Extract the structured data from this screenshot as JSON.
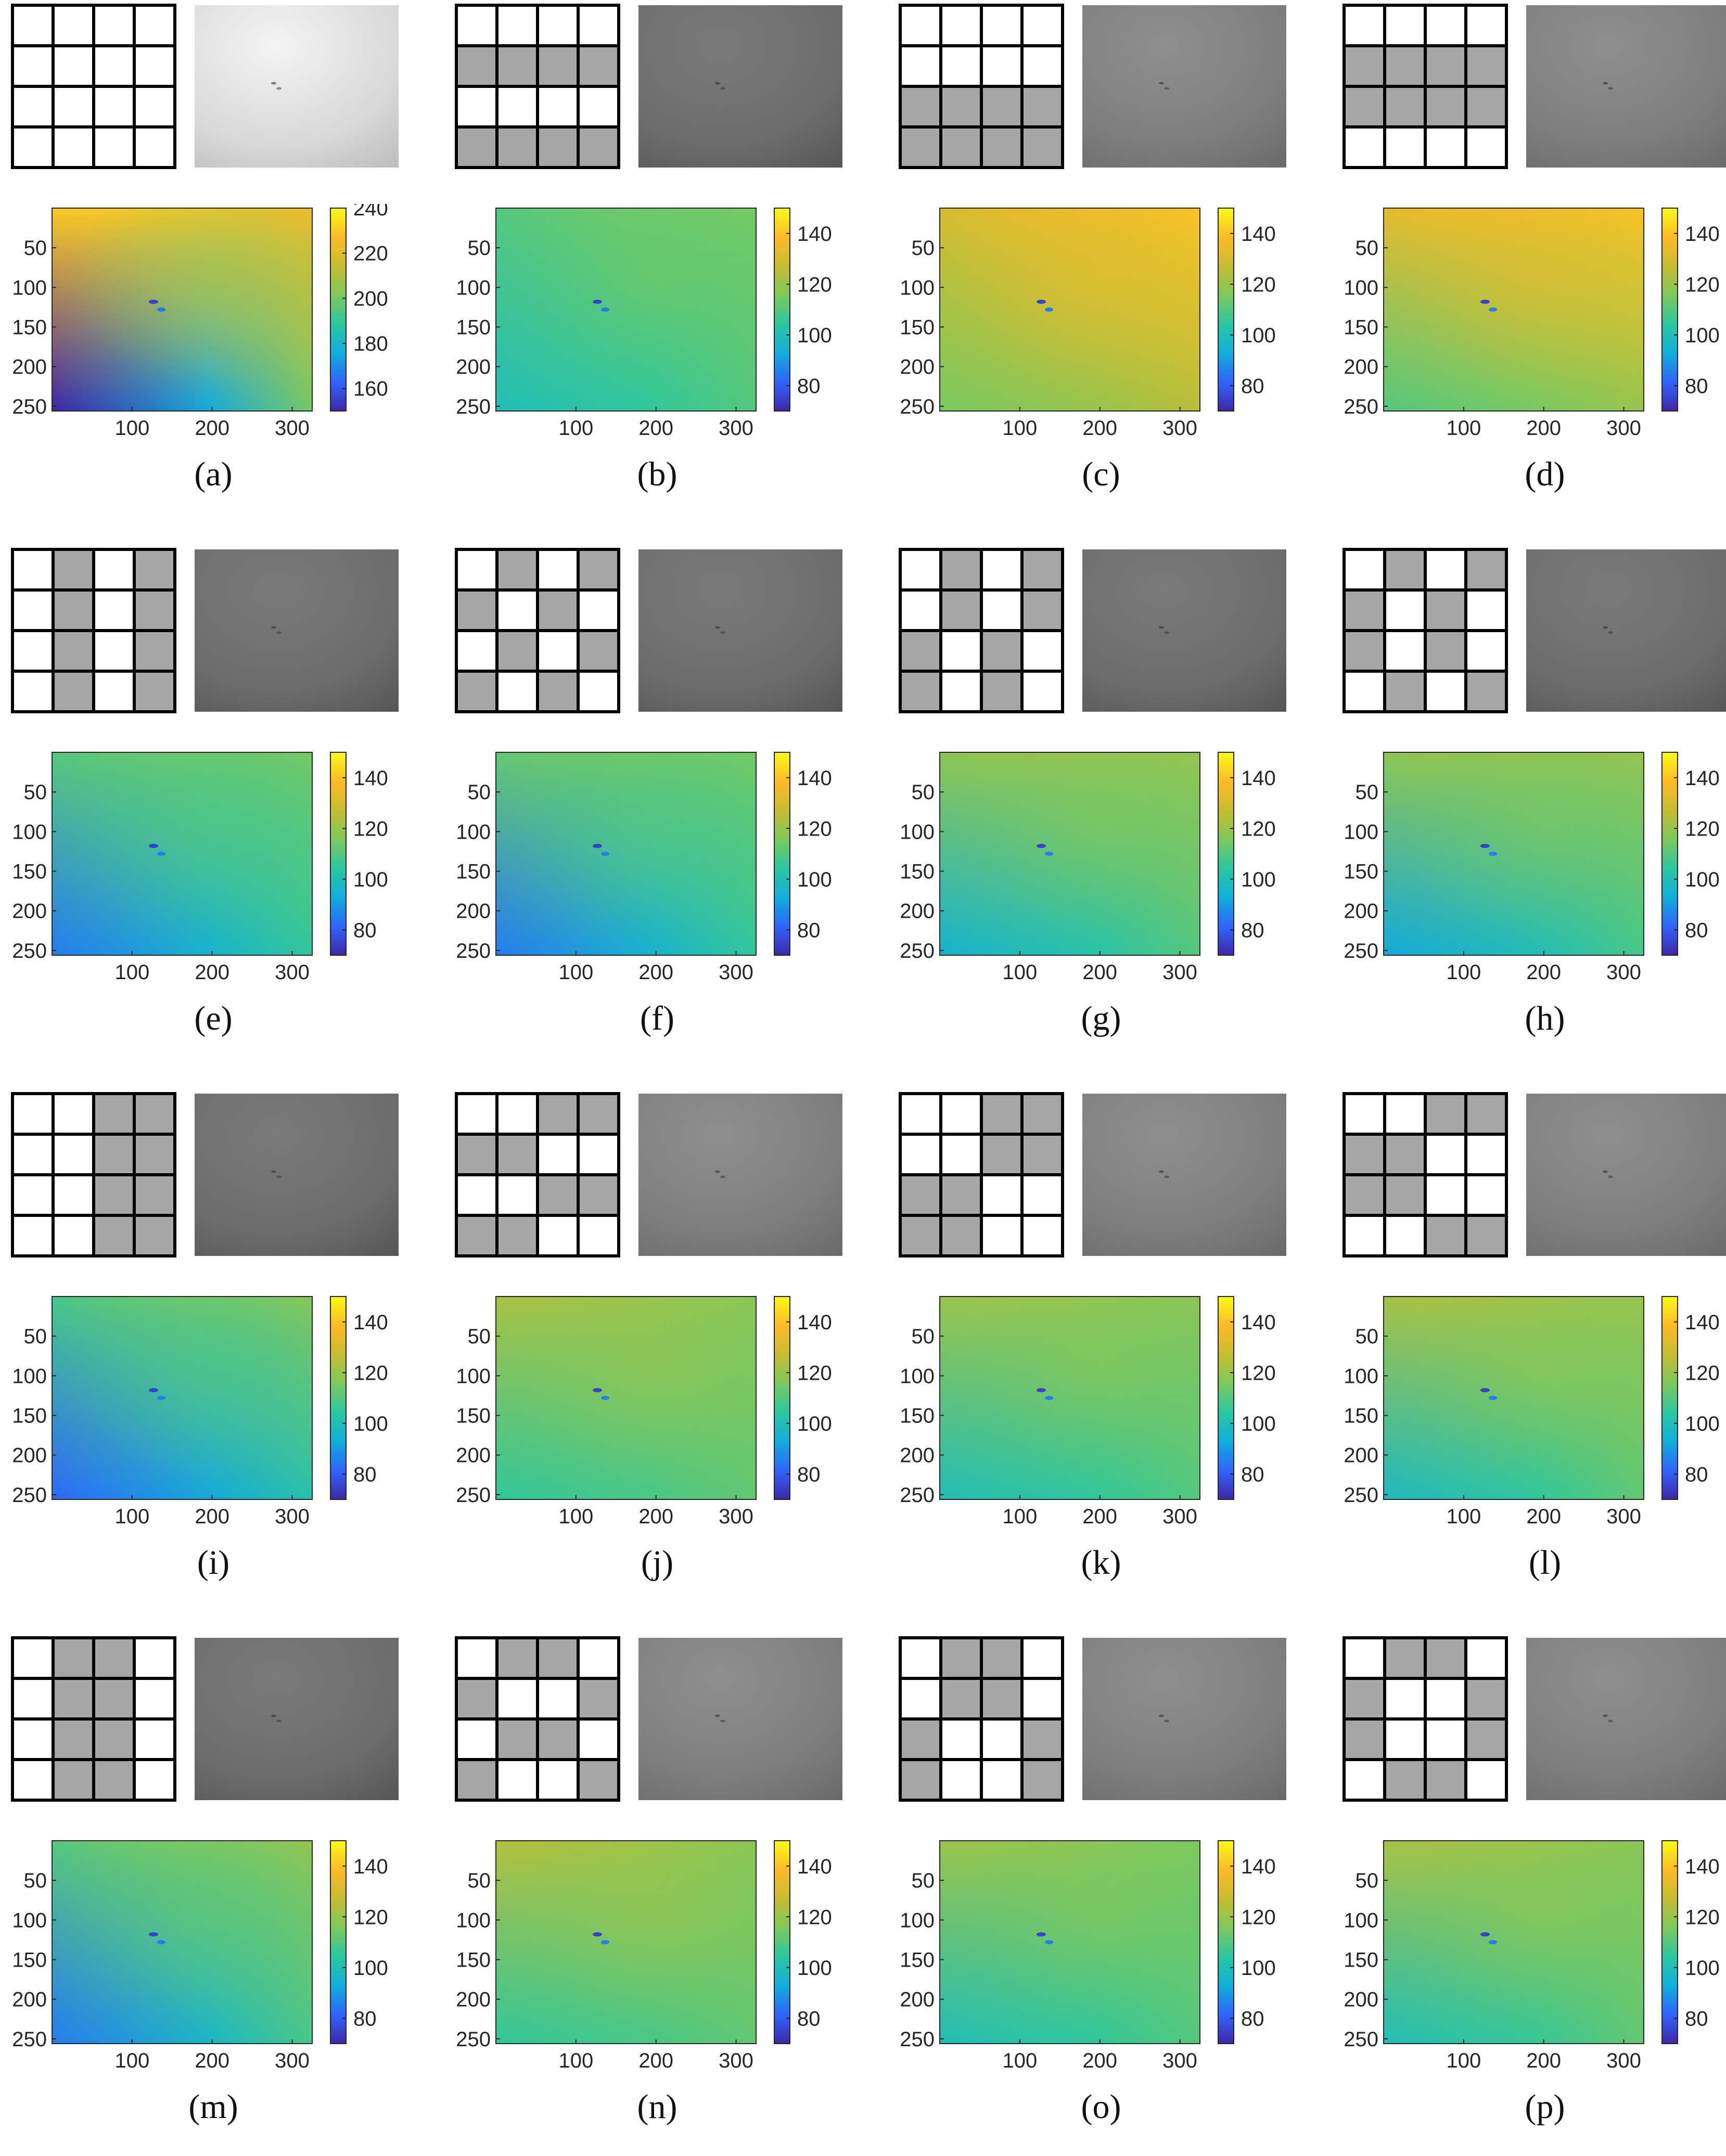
{
  "figure": {
    "mask_gray_color": "#a6a6a6",
    "mask_white_color": "#ffffff",
    "colorbar_stops": [
      "#3e26a8",
      "#2f65fa",
      "#12aeda",
      "#2cc7a0",
      "#7dc95c",
      "#c7bc32",
      "#fdbb27",
      "#f9fb15"
    ],
    "x_ticks": [
      "100",
      "200",
      "300"
    ],
    "y_ticks": [
      "50",
      "100",
      "150",
      "200",
      "250"
    ],
    "panels": [
      {
        "label": "(a)",
        "mask": [
          [
            0,
            0,
            0,
            0
          ],
          [
            0,
            0,
            0,
            0
          ],
          [
            0,
            0,
            0,
            0
          ],
          [
            0,
            0,
            0,
            0
          ]
        ],
        "thumb_tone": "bright",
        "colorbar_ticks": [
          "240",
          "220",
          "200",
          "180",
          "160"
        ],
        "color_range": [
          150,
          240
        ],
        "map": {
          "top_left": 230,
          "top_right": 225,
          "bottom_left": 150,
          "bottom_right": 200
        }
      },
      {
        "label": "(b)",
        "mask": [
          [
            0,
            0,
            0,
            0
          ],
          [
            1,
            1,
            1,
            1
          ],
          [
            0,
            0,
            0,
            0
          ],
          [
            1,
            1,
            1,
            1
          ]
        ],
        "thumb_tone": "dark",
        "colorbar_ticks": [
          "140",
          "120",
          "100",
          "80"
        ],
        "color_range": [
          70,
          150
        ],
        "map": {
          "top_left": 110,
          "top_right": 115,
          "bottom_left": 100,
          "bottom_right": 110
        }
      },
      {
        "label": "(c)",
        "mask": [
          [
            0,
            0,
            0,
            0
          ],
          [
            0,
            0,
            0,
            0
          ],
          [
            1,
            1,
            1,
            1
          ],
          [
            1,
            1,
            1,
            1
          ]
        ],
        "thumb_tone": "mid",
        "colorbar_ticks": [
          "140",
          "120",
          "100",
          "80"
        ],
        "color_range": [
          70,
          150
        ],
        "map": {
          "top_left": 130,
          "top_right": 140,
          "bottom_left": 115,
          "bottom_right": 125
        }
      },
      {
        "label": "(d)",
        "mask": [
          [
            0,
            0,
            0,
            0
          ],
          [
            1,
            1,
            1,
            1
          ],
          [
            1,
            1,
            1,
            1
          ],
          [
            0,
            0,
            0,
            0
          ]
        ],
        "thumb_tone": "mid",
        "colorbar_ticks": [
          "140",
          "120",
          "100",
          "80"
        ],
        "color_range": [
          70,
          150
        ],
        "map": {
          "top_left": 133,
          "top_right": 140,
          "bottom_left": 110,
          "bottom_right": 120
        }
      },
      {
        "label": "(e)",
        "mask": [
          [
            0,
            1,
            0,
            1
          ],
          [
            0,
            1,
            0,
            1
          ],
          [
            0,
            1,
            0,
            1
          ],
          [
            0,
            1,
            0,
            1
          ]
        ],
        "thumb_tone": "dark",
        "colorbar_ticks": [
          "140",
          "120",
          "100",
          "80"
        ],
        "color_range": [
          70,
          150
        ],
        "map": {
          "top_left": 110,
          "top_right": 115,
          "bottom_left": 85,
          "bottom_right": 105
        }
      },
      {
        "label": "(f)",
        "mask": [
          [
            0,
            1,
            0,
            1
          ],
          [
            1,
            0,
            1,
            0
          ],
          [
            0,
            1,
            0,
            1
          ],
          [
            1,
            0,
            1,
            0
          ]
        ],
        "thumb_tone": "dark",
        "colorbar_ticks": [
          "140",
          "120",
          "100",
          "80"
        ],
        "color_range": [
          70,
          150
        ],
        "map": {
          "top_left": 112,
          "top_right": 115,
          "bottom_left": 85,
          "bottom_right": 105
        }
      },
      {
        "label": "(g)",
        "mask": [
          [
            0,
            1,
            0,
            1
          ],
          [
            0,
            1,
            0,
            1
          ],
          [
            1,
            0,
            1,
            0
          ],
          [
            1,
            0,
            1,
            0
          ]
        ],
        "thumb_tone": "dark",
        "colorbar_ticks": [
          "140",
          "120",
          "100",
          "80"
        ],
        "color_range": [
          70,
          150
        ],
        "map": {
          "top_left": 118,
          "top_right": 120,
          "bottom_left": 95,
          "bottom_right": 110
        }
      },
      {
        "label": "(h)",
        "mask": [
          [
            0,
            1,
            0,
            1
          ],
          [
            1,
            0,
            1,
            0
          ],
          [
            1,
            0,
            1,
            0
          ],
          [
            0,
            1,
            0,
            1
          ]
        ],
        "thumb_tone": "dark",
        "colorbar_ticks": [
          "140",
          "120",
          "100",
          "80"
        ],
        "color_range": [
          70,
          150
        ],
        "map": {
          "top_left": 118,
          "top_right": 120,
          "bottom_left": 92,
          "bottom_right": 108
        }
      },
      {
        "label": "(i)",
        "mask": [
          [
            0,
            0,
            1,
            1
          ],
          [
            0,
            0,
            1,
            1
          ],
          [
            0,
            0,
            1,
            1
          ],
          [
            0,
            0,
            1,
            1
          ]
        ],
        "thumb_tone": "dark",
        "colorbar_ticks": [
          "140",
          "120",
          "100",
          "80"
        ],
        "color_range": [
          70,
          150
        ],
        "map": {
          "top_left": 108,
          "top_right": 118,
          "bottom_left": 82,
          "bottom_right": 102
        }
      },
      {
        "label": "(j)",
        "mask": [
          [
            0,
            0,
            1,
            1
          ],
          [
            1,
            1,
            0,
            0
          ],
          [
            0,
            0,
            1,
            1
          ],
          [
            1,
            1,
            0,
            0
          ]
        ],
        "thumb_tone": "mid",
        "colorbar_ticks": [
          "140",
          "120",
          "100",
          "80"
        ],
        "color_range": [
          70,
          150
        ],
        "map": {
          "top_left": 122,
          "top_right": 118,
          "bottom_left": 105,
          "bottom_right": 112
        }
      },
      {
        "label": "(k)",
        "mask": [
          [
            0,
            0,
            1,
            1
          ],
          [
            0,
            0,
            1,
            1
          ],
          [
            1,
            1,
            0,
            0
          ],
          [
            1,
            1,
            0,
            0
          ]
        ],
        "thumb_tone": "mid",
        "colorbar_ticks": [
          "140",
          "120",
          "100",
          "80"
        ],
        "color_range": [
          70,
          150
        ],
        "map": {
          "top_left": 120,
          "top_right": 118,
          "bottom_left": 100,
          "bottom_right": 110
        }
      },
      {
        "label": "(l)",
        "mask": [
          [
            0,
            0,
            1,
            1
          ],
          [
            1,
            1,
            0,
            0
          ],
          [
            1,
            1,
            0,
            0
          ],
          [
            0,
            0,
            1,
            1
          ]
        ],
        "thumb_tone": "mid",
        "colorbar_ticks": [
          "140",
          "120",
          "100",
          "80"
        ],
        "color_range": [
          70,
          150
        ],
        "map": {
          "top_left": 122,
          "top_right": 120,
          "bottom_left": 98,
          "bottom_right": 112
        }
      },
      {
        "label": "(m)",
        "mask": [
          [
            0,
            1,
            1,
            0
          ],
          [
            0,
            1,
            1,
            0
          ],
          [
            0,
            1,
            1,
            0
          ],
          [
            0,
            1,
            1,
            0
          ]
        ],
        "thumb_tone": "dark",
        "colorbar_ticks": [
          "140",
          "120",
          "100",
          "80"
        ],
        "color_range": [
          70,
          150
        ],
        "map": {
          "top_left": 110,
          "top_right": 120,
          "bottom_left": 85,
          "bottom_right": 108
        }
      },
      {
        "label": "(n)",
        "mask": [
          [
            0,
            1,
            1,
            0
          ],
          [
            1,
            0,
            0,
            1
          ],
          [
            0,
            1,
            1,
            0
          ],
          [
            1,
            0,
            0,
            1
          ]
        ],
        "thumb_tone": "mid",
        "colorbar_ticks": [
          "140",
          "120",
          "100",
          "80"
        ],
        "color_range": [
          70,
          150
        ],
        "map": {
          "top_left": 124,
          "top_right": 118,
          "bottom_left": 105,
          "bottom_right": 112
        }
      },
      {
        "label": "(o)",
        "mask": [
          [
            0,
            1,
            1,
            0
          ],
          [
            0,
            1,
            1,
            0
          ],
          [
            1,
            0,
            0,
            1
          ],
          [
            1,
            0,
            0,
            1
          ]
        ],
        "thumb_tone": "mid",
        "colorbar_ticks": [
          "140",
          "120",
          "100",
          "80"
        ],
        "color_range": [
          70,
          150
        ],
        "map": {
          "top_left": 120,
          "top_right": 116,
          "bottom_left": 100,
          "bottom_right": 110
        }
      },
      {
        "label": "(p)",
        "mask": [
          [
            0,
            1,
            1,
            0
          ],
          [
            1,
            0,
            0,
            1
          ],
          [
            1,
            0,
            0,
            1
          ],
          [
            0,
            1,
            1,
            0
          ]
        ],
        "thumb_tone": "mid",
        "colorbar_ticks": [
          "140",
          "120",
          "100",
          "80"
        ],
        "color_range": [
          70,
          150
        ],
        "map": {
          "top_left": 122,
          "top_right": 118,
          "bottom_left": 100,
          "bottom_right": 112
        }
      }
    ]
  }
}
